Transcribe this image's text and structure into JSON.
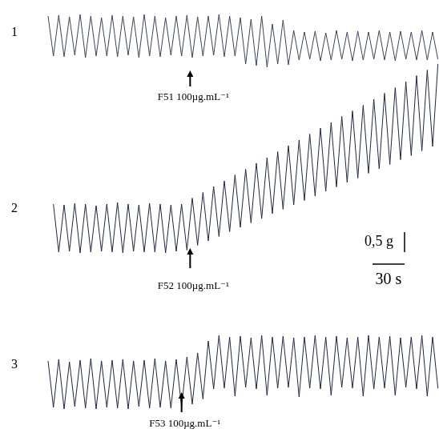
{
  "chart_data": [
    {
      "type": "line",
      "label": "1",
      "color": "#3a4358",
      "grid": false,
      "tick_labels": false,
      "xlim": [
        0,
        411
      ],
      "ylim": [
        0,
        2.6
      ],
      "x": [
        45,
        50,
        55,
        60,
        65,
        70,
        75,
        80,
        85,
        90,
        95,
        100,
        105,
        110,
        115,
        120,
        125,
        130,
        135,
        140,
        145,
        150,
        155,
        160,
        165,
        170,
        175,
        180,
        185,
        190,
        195,
        200,
        205,
        210,
        215,
        220,
        225,
        230,
        235,
        240,
        245,
        250,
        255,
        260,
        265,
        270,
        275,
        280,
        285,
        290,
        295,
        300,
        305,
        310,
        315,
        320,
        325,
        330,
        335,
        340,
        345,
        350,
        355,
        360,
        365,
        370,
        375,
        380,
        385,
        390,
        395,
        400,
        405,
        410
      ],
      "values": [
        2.2,
        1.2,
        2.22,
        1.18,
        2.18,
        1.22,
        2.24,
        1.16,
        2.2,
        1.2,
        2.16,
        1.2,
        2.22,
        1.18,
        2.2,
        1.22,
        2.18,
        1.16,
        2.24,
        1.2,
        2.2,
        1.18,
        2.16,
        1.22,
        2.2,
        1.2,
        2.22,
        1.16,
        2.18,
        1.2,
        2.2,
        1.22,
        2.24,
        1.18,
        2.2,
        1.2,
        2.16,
        1.0,
        2.12,
        0.96,
        2.2,
        0.92,
        2.0,
        1.0,
        2.1,
        0.98,
        1.84,
        1.1,
        1.8,
        1.12,
        1.82,
        1.08,
        1.78,
        1.1,
        1.84,
        1.12,
        1.8,
        1.08,
        1.82,
        1.1,
        1.8,
        1.12,
        1.84,
        1.1,
        1.8,
        1.08,
        1.82,
        1.12,
        1.8,
        1.1,
        1.84,
        1.1,
        1.8,
        1.12
      ],
      "annotations": [
        {
          "text": "F51 100µg.mL⁻¹",
          "x": 178
        }
      ]
    },
    {
      "type": "line",
      "label": "2",
      "color": "#1f2740",
      "grid": false,
      "tick_labels": false,
      "xlim": [
        0,
        411
      ],
      "ylim": [
        0,
        6.2
      ],
      "x": [
        50,
        55,
        60,
        65,
        70,
        75,
        80,
        85,
        90,
        95,
        100,
        105,
        110,
        115,
        120,
        125,
        130,
        135,
        140,
        145,
        150,
        155,
        160,
        165,
        170,
        175,
        180,
        185,
        190,
        195,
        200,
        205,
        210,
        215,
        220,
        225,
        230,
        235,
        240,
        245,
        250,
        255,
        260,
        265,
        270,
        275,
        280,
        285,
        290,
        295,
        300,
        305,
        310,
        315,
        320,
        325,
        330,
        335,
        340,
        345,
        350,
        355,
        360,
        365,
        370,
        375,
        380,
        385,
        390,
        395,
        400,
        405,
        410
      ],
      "values": [
        2.3,
        1.1,
        2.28,
        1.12,
        2.32,
        1.08,
        2.3,
        1.1,
        2.26,
        1.12,
        2.3,
        1.1,
        2.34,
        1.08,
        2.3,
        1.12,
        2.28,
        1.1,
        2.32,
        1.1,
        2.3,
        1.08,
        2.28,
        1.12,
        2.3,
        1.15,
        2.45,
        1.27,
        2.59,
        1.38,
        2.74,
        1.49,
        2.88,
        1.61,
        3.03,
        1.72,
        3.17,
        1.83,
        3.32,
        1.94,
        3.46,
        2.06,
        3.61,
        2.17,
        3.76,
        2.28,
        3.9,
        2.39,
        4.05,
        2.5,
        4.2,
        2.62,
        4.34,
        2.73,
        4.49,
        2.84,
        4.63,
        2.95,
        4.77,
        3.07,
        4.92,
        3.18,
        5.07,
        3.29,
        5.21,
        3.41,
        5.36,
        3.51,
        5.51,
        3.63,
        5.65,
        3.74,
        5.8
      ],
      "annotations": [
        {
          "text": "F52 100µg.mL⁻¹",
          "x": 178
        }
      ],
      "scale_bar": {
        "force": 0.5,
        "force_label": "0,5 g",
        "time": 30,
        "time_label": "30 s"
      }
    },
    {
      "type": "line",
      "label": "3",
      "color": "#1f2740",
      "grid": false,
      "tick_labels": false,
      "xlim": [
        0,
        411
      ],
      "ylim": [
        0,
        2.82
      ],
      "x": [
        45,
        50,
        55,
        60,
        65,
        70,
        75,
        80,
        85,
        90,
        95,
        100,
        105,
        110,
        115,
        120,
        125,
        130,
        135,
        140,
        145,
        150,
        155,
        160,
        165,
        170,
        175,
        180,
        185,
        190,
        195,
        200,
        205,
        210,
        215,
        220,
        225,
        230,
        235,
        240,
        245,
        250,
        255,
        260,
        265,
        270,
        275,
        280,
        285,
        290,
        295,
        300,
        305,
        310,
        315,
        320,
        325,
        330,
        335,
        340,
        345,
        350,
        355,
        360,
        365,
        370,
        375,
        380,
        385,
        390,
        395,
        400,
        405,
        410
      ],
      "values": [
        1.8,
        0.64,
        1.84,
        0.6,
        1.78,
        0.66,
        1.82,
        0.62,
        1.86,
        0.6,
        1.8,
        0.64,
        1.82,
        0.62,
        1.84,
        0.6,
        1.8,
        0.66,
        1.82,
        0.62,
        1.86,
        0.64,
        1.8,
        0.62,
        1.84,
        0.66,
        1.9,
        0.72,
        2.0,
        0.85,
        2.3,
        1.1,
        2.44,
        1.12,
        2.4,
        0.92,
        2.42,
        1.14,
        2.38,
        1.1,
        2.44,
        0.94,
        2.4,
        1.12,
        2.42,
        1.14,
        2.38,
        0.9,
        2.4,
        1.12,
        2.44,
        1.1,
        2.4,
        0.94,
        2.42,
        1.14,
        2.38,
        1.12,
        2.4,
        0.92,
        2.44,
        1.1,
        2.4,
        1.12,
        2.42,
        0.94,
        2.38,
        1.14,
        2.4,
        1.1,
        2.44,
        0.92,
        2.4,
        1.12
      ],
      "annotations": [
        {
          "text": "F53 100µg.mL⁻¹",
          "x": 170
        }
      ]
    }
  ]
}
